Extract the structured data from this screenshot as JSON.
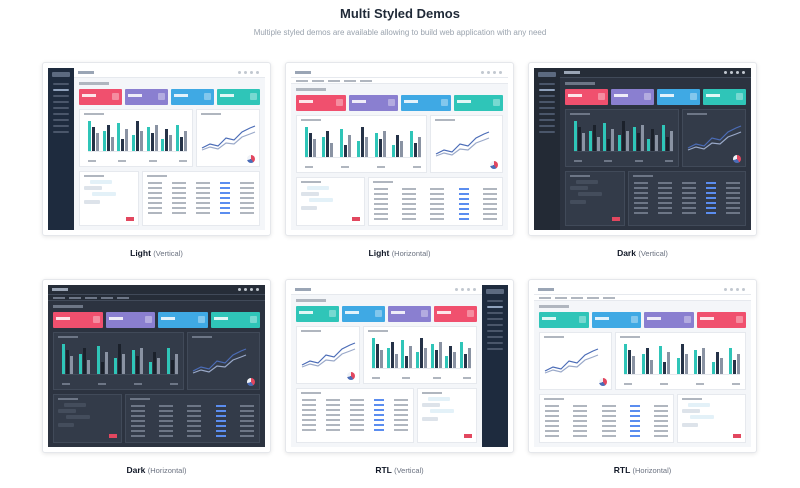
{
  "section": {
    "title": "Multi Styled Demos",
    "subtitle": "Multiple styled demos are available allowing to build web application with any need"
  },
  "colors": {
    "kpi_red": "#f0506e",
    "kpi_purple": "#8a7fd0",
    "kpi_blue": "#3fa9e4",
    "kpi_teal": "#2fc5b8",
    "bar_teal": "#2fc5b8",
    "bar_dark": "#253247",
    "bar_gray": "#8a93a3",
    "line_blue": "#4b6cb7",
    "sidebar_dark": "#1e2b3e",
    "dark_bg": "#2c3340"
  },
  "demos": [
    {
      "label": "Light",
      "variant": "(Vertical)",
      "theme": "light",
      "layout": "vertical",
      "direction": "ltr"
    },
    {
      "label": "Light",
      "variant": "(Horizontal)",
      "theme": "light",
      "layout": "horizontal",
      "direction": "ltr"
    },
    {
      "label": "Dark",
      "variant": "(Vertical)",
      "theme": "dark",
      "layout": "vertical",
      "direction": "ltr"
    },
    {
      "label": "Dark",
      "variant": "(Horizontal)",
      "theme": "dark",
      "layout": "horizontal",
      "direction": "ltr"
    },
    {
      "label": "RTL",
      "variant": "(Vertical)",
      "theme": "light",
      "layout": "vertical",
      "direction": "rtl"
    },
    {
      "label": "RTL",
      "variant": "(Horizontal)",
      "theme": "light",
      "layout": "horizontal",
      "direction": "rtl"
    }
  ]
}
